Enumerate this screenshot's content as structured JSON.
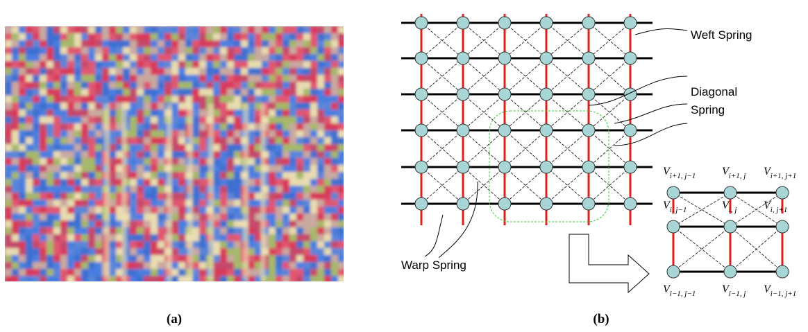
{
  "panels": [
    {
      "label": "(a)"
    },
    {
      "label": "(b)"
    }
  ],
  "annotations": {
    "weft": "Weft Spring",
    "diagonal": [
      "Diagonal",
      "Spring"
    ],
    "warp": "Warp Spring"
  },
  "vertices": [
    {
      "symbol": "V",
      "subscript": "i+1, j−1"
    },
    {
      "symbol": "V",
      "subscript": "i+1, j"
    },
    {
      "symbol": "V",
      "subscript": "i+1, j+1"
    },
    {
      "symbol": "V",
      "subscript": "i, j−1"
    },
    {
      "symbol": "V",
      "subscript": "i, j"
    },
    {
      "symbol": "V",
      "subscript": "i, j+1"
    },
    {
      "symbol": "V",
      "subscript": "i−1, j−1"
    },
    {
      "symbol": "V",
      "subscript": "i−1, j"
    },
    {
      "symbol": "V",
      "subscript": "i−1, j+1"
    }
  ]
}
